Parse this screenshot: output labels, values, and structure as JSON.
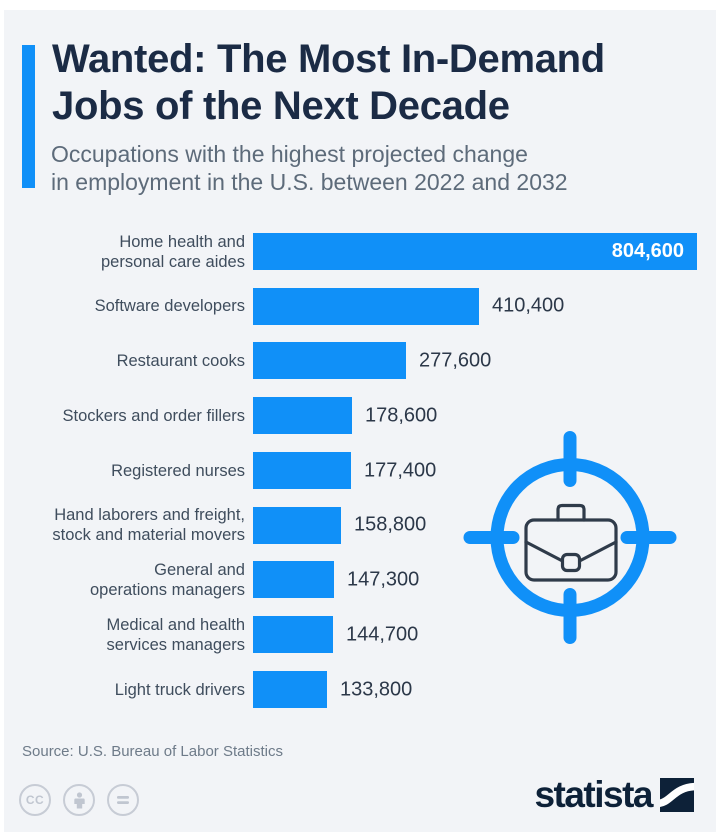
{
  "header": {
    "title_lines": [
      "Wanted: The Most In-Demand",
      "Jobs of the Next Decade"
    ],
    "subtitle_lines": [
      "Occupations with the highest projected change",
      "in employment in the U.S. between 2022 and 2032"
    ]
  },
  "chart_data": {
    "type": "bar",
    "orientation": "horizontal",
    "title": "Wanted: The Most In-Demand Jobs of the Next Decade",
    "subtitle": "Occupations with the highest projected change in employment in the U.S. between 2022 and 2032",
    "categories": [
      "Home health and personal care aides",
      "Software developers",
      "Restaurant cooks",
      "Stockers and order fillers",
      "Registered nurses",
      "Hand laborers and freight, stock and material movers",
      "General and operations managers",
      "Medical and health services managers",
      "Light truck drivers"
    ],
    "category_lines": [
      [
        "Home health and",
        "personal care aides"
      ],
      [
        "Software developers"
      ],
      [
        "Restaurant cooks"
      ],
      [
        "Stockers and order fillers"
      ],
      [
        "Registered nurses"
      ],
      [
        "Hand laborers and freight,",
        "stock and material movers"
      ],
      [
        "General and",
        "operations managers"
      ],
      [
        "Medical and health",
        "services managers"
      ],
      [
        "Light truck drivers"
      ]
    ],
    "values": [
      804600,
      410400,
      277600,
      178600,
      177400,
      158800,
      147300,
      144700,
      133800
    ],
    "value_labels": [
      "804,600",
      "410,400",
      "277,600",
      "178,600",
      "177,400",
      "158,800",
      "147,300",
      "144,700",
      "133,800"
    ],
    "xlim": [
      0,
      804600
    ],
    "grid": false,
    "legend": "none",
    "bar_color": "#1090f8",
    "value_label_position": "outside; first bar inside in white"
  },
  "decoration": {
    "icon": "target-crosshair-briefcase",
    "color": "#1090f8"
  },
  "footer": {
    "source": "Source: U.S. Bureau of Labor Statistics",
    "brand": "statista",
    "license_icons": [
      "cc",
      "attribution",
      "equals"
    ]
  },
  "colors": {
    "background": "#f2f4f7",
    "accent_blue": "#1090f8",
    "title": "#1b2b45",
    "subtitle": "#5d6b7a",
    "label": "#3f4d5d",
    "value": "#2c3849",
    "brand_navy": "#0d2138",
    "briefcase_stroke": "#2f3b4a"
  }
}
